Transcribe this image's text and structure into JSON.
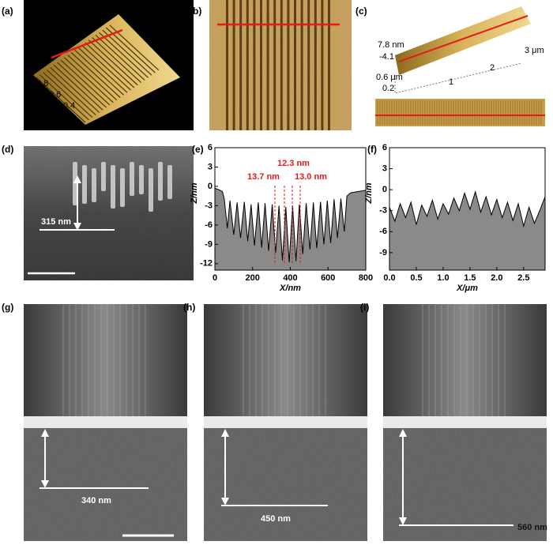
{
  "panels": {
    "labels": [
      "(a)",
      "(b)",
      "(c)",
      "(d)",
      "(e)",
      "(f)",
      "(g)",
      "(h)",
      "(i)"
    ]
  },
  "panel_a": {
    "axis_labels": [
      "μm",
      "1.0",
      "0.8",
      "0.6",
      "0.4",
      "0.2",
      "0.4",
      "0.6",
      "0.8",
      "1.0 μm"
    ]
  },
  "panel_c": {
    "axis_labels": [
      "7.8 nm",
      "-4.1",
      "0.6 μm",
      "0.2",
      "1",
      "2",
      "3 μm"
    ]
  },
  "panel_d": {
    "scale_label": "315 nm"
  },
  "panel_g": {
    "scale_label": "340 nm"
  },
  "panel_h": {
    "scale_label": "450 nm"
  },
  "panel_i": {
    "scale_label": "560 nm"
  },
  "chart_data": [
    {
      "type": "area",
      "xlabel": "X/nm",
      "ylabel": "Z/nm",
      "annotations": [
        "12.3 nm",
        "13.7 nm",
        "13.0 nm"
      ],
      "xlim": [
        0,
        800
      ],
      "xticks": [
        0,
        200,
        400,
        600,
        800
      ],
      "ylim": [
        -13,
        6
      ],
      "yticks": [
        6,
        3,
        0,
        -3,
        -6,
        -9,
        -12
      ],
      "color": "#000000",
      "fill": "#8a8a8a",
      "x": [
        0,
        20,
        40,
        50,
        66,
        80,
        100,
        118,
        136,
        156,
        174,
        192,
        210,
        230,
        248,
        266,
        285,
        304,
        322,
        340,
        358,
        376,
        394,
        412,
        430,
        448,
        466,
        484,
        504,
        522,
        540,
        560,
        578,
        596,
        614,
        632,
        650,
        668,
        686,
        700,
        720,
        760,
        800
      ],
      "values": [
        -0.3,
        -0.5,
        -0.8,
        -2.0,
        -6.5,
        -2.2,
        -7.5,
        -2.5,
        -8.0,
        -2.4,
        -8.5,
        -2.8,
        -9.2,
        -2.5,
        -9.5,
        -2.6,
        -10.0,
        -2.8,
        -10.3,
        -3.0,
        -11.5,
        -3.2,
        -11.8,
        -3.0,
        -11.6,
        -2.8,
        -10.5,
        -2.6,
        -9.8,
        -2.5,
        -9.6,
        -2.4,
        -9.0,
        -2.2,
        -8.8,
        -2.0,
        -8.0,
        -1.9,
        -7.0,
        -1.5,
        -1.0,
        -0.8,
        -0.6
      ]
    },
    {
      "type": "area",
      "xlabel": "X/μm",
      "ylabel": "Z/nm",
      "xlim": [
        0,
        2.9
      ],
      "xticks": [
        {
          "value": 0,
          "label": "0.0"
        },
        0.5,
        {
          "value": 1,
          "label": "1.0"
        },
        1.5,
        {
          "value": 2,
          "label": "2.0"
        },
        2.5
      ],
      "ylim": [
        -11.5,
        6
      ],
      "yticks": [
        6,
        3,
        0,
        -3,
        -6,
        -9
      ],
      "color": "#000000",
      "fill": "#8a8a8a",
      "x": [
        0,
        0.1,
        0.2,
        0.3,
        0.4,
        0.5,
        0.6,
        0.7,
        0.8,
        0.9,
        1.0,
        1.1,
        1.2,
        1.3,
        1.4,
        1.5,
        1.6,
        1.7,
        1.8,
        1.9,
        2.0,
        2.1,
        2.2,
        2.3,
        2.4,
        2.5,
        2.6,
        2.7,
        2.8,
        2.9
      ],
      "values": [
        -2.5,
        -4.5,
        -2.0,
        -4.0,
        -1.8,
        -5.0,
        -2.2,
        -3.8,
        -1.5,
        -4.2,
        -2.0,
        -3.5,
        -1.2,
        -3.0,
        -0.5,
        -2.8,
        -0.3,
        -3.2,
        -1.0,
        -3.6,
        -1.4,
        -4.0,
        -1.8,
        -4.4,
        -2.0,
        -5.2,
        -2.5,
        -4.8,
        -3.0,
        -1.0
      ]
    }
  ]
}
